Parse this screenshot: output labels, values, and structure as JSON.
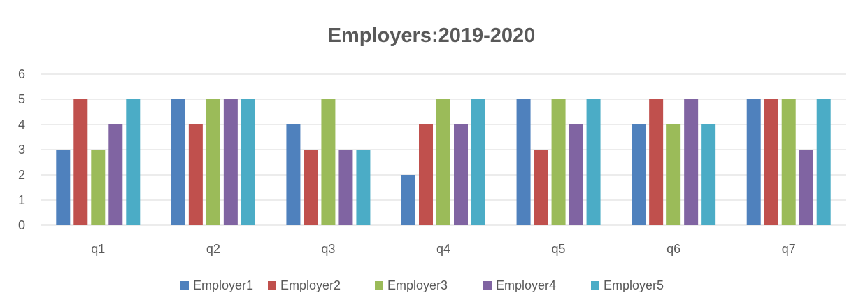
{
  "chart_data": {
    "type": "bar",
    "title": "Employers:2019-2020",
    "xlabel": "",
    "ylabel": "",
    "ylim": [
      0,
      6
    ],
    "yticks": [
      "0",
      "1",
      "2",
      "3",
      "4",
      "5",
      "6"
    ],
    "grid": true,
    "legend_position": "bottom",
    "categories": [
      "q1",
      "q2",
      "q3",
      "q4",
      "q5",
      "q6",
      "q7"
    ],
    "series": [
      {
        "name": "Employer1",
        "color": "#4f81bd",
        "values": [
          3,
          5,
          4,
          2,
          5,
          4,
          5
        ]
      },
      {
        "name": "Employer2",
        "color": "#c0504d",
        "values": [
          5,
          4,
          3,
          4,
          3,
          5,
          5
        ]
      },
      {
        "name": "Employer3",
        "color": "#9bbb59",
        "values": [
          3,
          5,
          5,
          5,
          5,
          4,
          5
        ]
      },
      {
        "name": "Employer4",
        "color": "#8064a2",
        "values": [
          4,
          5,
          3,
          4,
          4,
          5,
          3
        ]
      },
      {
        "name": "Employer5",
        "color": "#4bacc6",
        "values": [
          5,
          5,
          3,
          5,
          5,
          4,
          5
        ]
      }
    ]
  }
}
